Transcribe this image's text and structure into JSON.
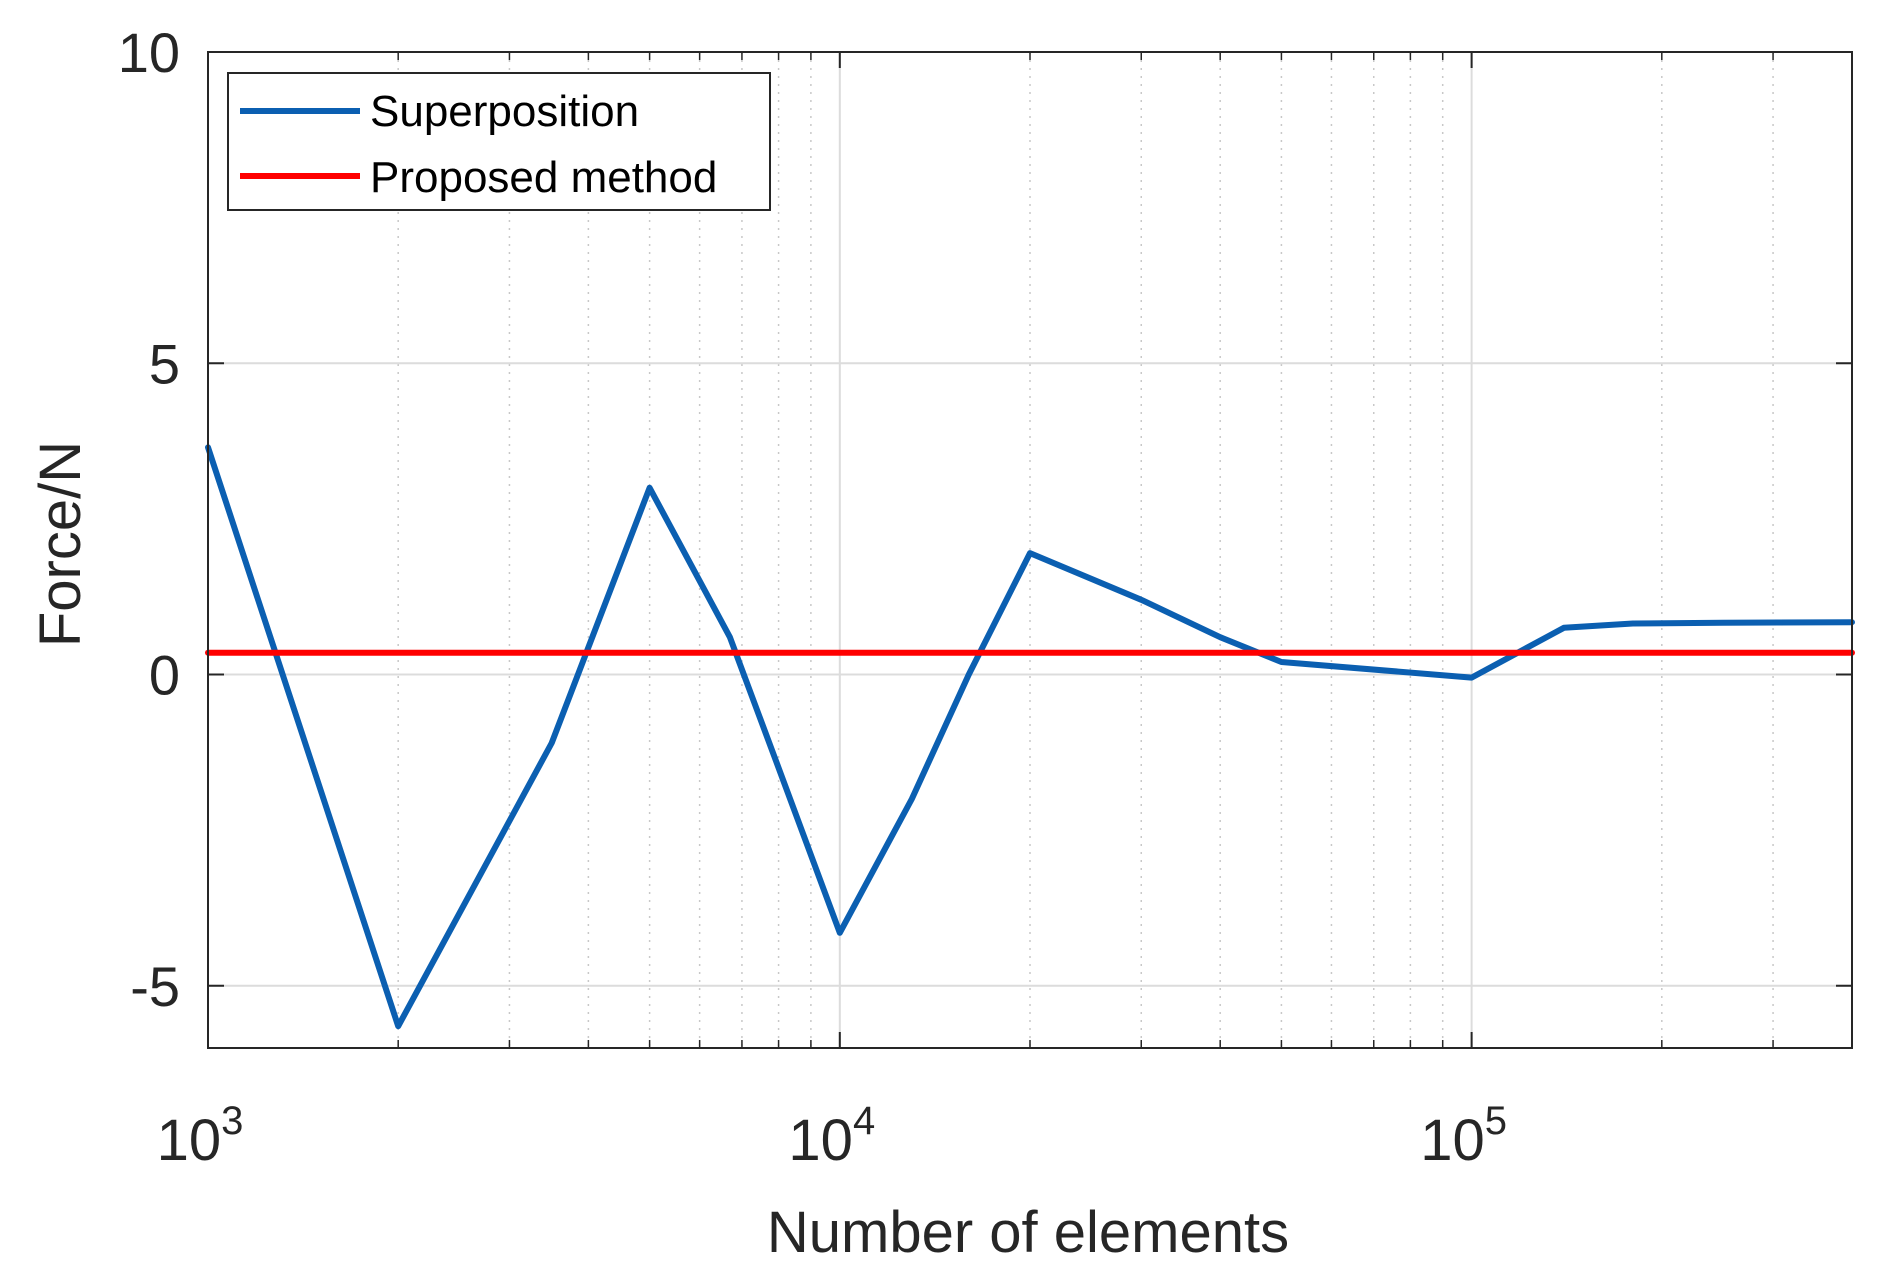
{
  "chart_data": {
    "type": "line",
    "title": "",
    "xlabel": "Number of elements",
    "ylabel": "Force/N",
    "xscale": "log",
    "xlim": [
      1000,
      400000
    ],
    "ylim": [
      -6,
      10
    ],
    "grid": true,
    "minor_grid_x": true,
    "legend_position": "top-left",
    "yticks": [
      {
        "value": -5,
        "label": "-5"
      },
      {
        "value": 0,
        "label": "0"
      },
      {
        "value": 5,
        "label": "5"
      },
      {
        "value": 10,
        "label": "10"
      }
    ],
    "xticks": [
      {
        "value": 1000,
        "base": "10",
        "exp": "3"
      },
      {
        "value": 10000,
        "base": "10",
        "exp": "4"
      },
      {
        "value": 100000,
        "base": "10",
        "exp": "5"
      }
    ],
    "series": [
      {
        "name": "Superposition",
        "color": "#0b5fb1",
        "x": [
          1000,
          2000,
          3500,
          5000,
          6700,
          8000,
          10000,
          13000,
          16000,
          20000,
          30000,
          40000,
          50000,
          100000,
          140000,
          180000,
          250000,
          400000
        ],
        "y": [
          3.65,
          -5.65,
          -1.1,
          3.0,
          0.6,
          -1.5,
          -4.15,
          -2.0,
          0.0,
          1.95,
          1.2,
          0.6,
          0.2,
          -0.05,
          0.75,
          0.82,
          0.83,
          0.84
        ]
      },
      {
        "name": "Proposed method",
        "color": "#ff0000",
        "x": [
          1000,
          400000
        ],
        "y": [
          0.35,
          0.35
        ]
      }
    ]
  }
}
